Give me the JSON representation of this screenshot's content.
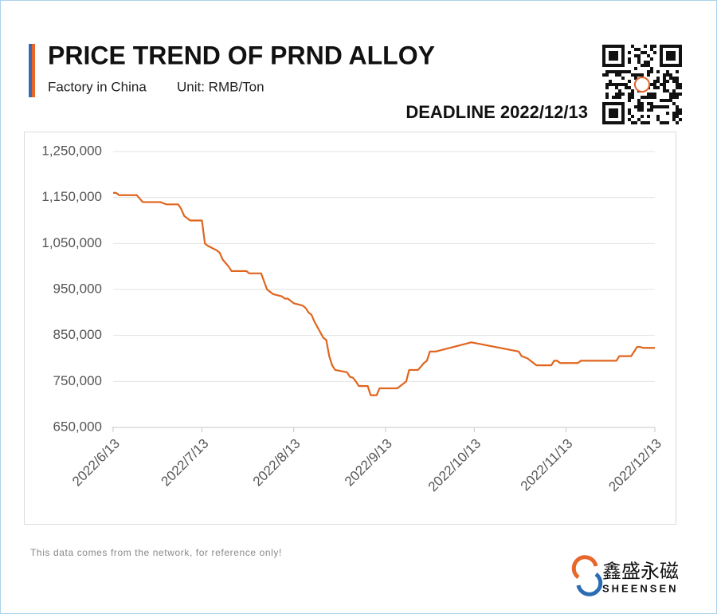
{
  "header": {
    "title": "PRICE TREND OF PRND ALLOY",
    "subtitle": "Factory in China",
    "unit": "Unit: RMB/Ton",
    "deadline": "DEADLINE 2022/12/13"
  },
  "chart_data": {
    "type": "line",
    "x": [
      "2022/6/13",
      "2022/6/14",
      "2022/6/15",
      "2022/6/21",
      "2022/6/23",
      "2022/6/29",
      "2022/7/1",
      "2022/7/5",
      "2022/7/6",
      "2022/7/7",
      "2022/7/9",
      "2022/7/13",
      "2022/7/14",
      "2022/7/15",
      "2022/7/18",
      "2022/7/19",
      "2022/7/20",
      "2022/7/22",
      "2022/7/23",
      "2022/7/28",
      "2022/7/29",
      "2022/8/2",
      "2022/8/4",
      "2022/8/5",
      "2022/8/6",
      "2022/8/9",
      "2022/8/10",
      "2022/8/11",
      "2022/8/12",
      "2022/8/13",
      "2022/8/16",
      "2022/8/17",
      "2022/8/18",
      "2022/8/19",
      "2022/8/20",
      "2022/8/23",
      "2022/8/24",
      "2022/8/25",
      "2022/8/26",
      "2022/8/27",
      "2022/8/31",
      "2022/9/1",
      "2022/9/2",
      "2022/9/3",
      "2022/9/4",
      "2022/9/7",
      "2022/9/8",
      "2022/9/10",
      "2022/9/11",
      "2022/9/17",
      "2022/9/19",
      "2022/9/20",
      "2022/9/21",
      "2022/9/24",
      "2022/9/26",
      "2022/9/27",
      "2022/9/28",
      "2022/9/30",
      "2022/10/12",
      "2022/10/28",
      "2022/10/29",
      "2022/10/31",
      "2022/11/3",
      "2022/11/8",
      "2022/11/9",
      "2022/11/10",
      "2022/11/11",
      "2022/11/17",
      "2022/11/18",
      "2022/11/30",
      "2022/12/1",
      "2022/12/5",
      "2022/12/7",
      "2022/12/8",
      "2022/12/9",
      "2022/12/13"
    ],
    "series": [
      {
        "color": "#e0651e",
        "values": [
          1160000,
          1160000,
          1155000,
          1155000,
          1140000,
          1140000,
          1135000,
          1135000,
          1125000,
          1110000,
          1100000,
          1100000,
          1050000,
          1045000,
          1035000,
          1030000,
          1015000,
          1000000,
          990000,
          990000,
          985000,
          985000,
          950000,
          945000,
          940000,
          935000,
          930000,
          930000,
          925000,
          920000,
          915000,
          910000,
          900000,
          895000,
          880000,
          845000,
          840000,
          805000,
          785000,
          775000,
          770000,
          760000,
          758000,
          750000,
          740000,
          740000,
          720000,
          720000,
          735000,
          735000,
          745000,
          750000,
          775000,
          775000,
          790000,
          795000,
          815000,
          815000,
          835000,
          815000,
          805000,
          800000,
          785000,
          785000,
          795000,
          795000,
          790000,
          790000,
          795000,
          795000,
          805000,
          805000,
          825000,
          825000,
          823000,
          823000
        ]
      }
    ],
    "xlim": [
      "2022/6/13",
      "2022/12/13"
    ],
    "xticks": [
      "2022/6/13",
      "2022/7/13",
      "2022/8/13",
      "2022/9/13",
      "2022/10/13",
      "2022/11/13",
      "2022/12/13"
    ],
    "ylim": [
      650000,
      1250000
    ],
    "yticks": [
      {
        "value": 650000,
        "label": "650,000"
      },
      {
        "value": 750000,
        "label": "750,000"
      },
      {
        "value": 850000,
        "label": "850,000"
      },
      {
        "value": 950000,
        "label": "950,000"
      },
      {
        "value": 1050000,
        "label": "1,050,000"
      },
      {
        "value": 1150000,
        "label": "1,150,000"
      },
      {
        "value": 1250000,
        "label": "1,250,000"
      }
    ],
    "grid": true
  },
  "footer": {
    "note": "This data comes from the network, for reference only!",
    "brand_cn": "鑫盛永磁",
    "brand_en": "SHEENSEN"
  }
}
